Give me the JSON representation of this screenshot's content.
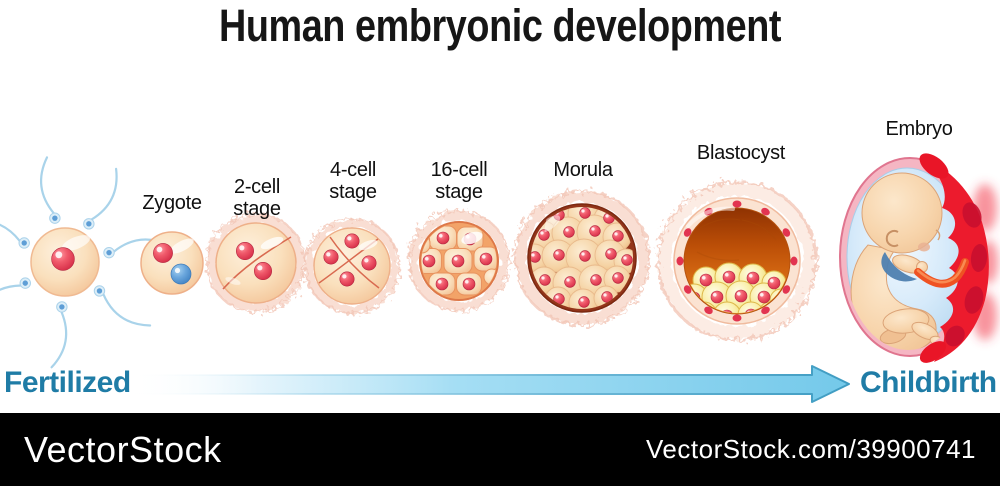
{
  "title": "Human embryonic development",
  "stage_labels": [
    {
      "id": "zygote",
      "label": "Zygote"
    },
    {
      "id": "2-cell-stage",
      "label": "2-cell stage"
    },
    {
      "id": "4-cell-stage",
      "label": "4-cell stage"
    },
    {
      "id": "16-cell-stage",
      "label": "16-cell stage"
    },
    {
      "id": "morula",
      "label": "Morula"
    },
    {
      "id": "blastocyst",
      "label": "Blastocyst"
    },
    {
      "id": "embryo",
      "label": "Embryo"
    }
  ],
  "timeline": {
    "start_label": "Fertilized",
    "end_label": "Childbirth"
  },
  "footer": {
    "brand": "VectorStock",
    "credit": "VectorStock.com/39900741"
  },
  "colors": {
    "title_text": "#161616",
    "timeline_text": "#1f7ca6",
    "arrow_fill": "#74c9ea",
    "arrow_stroke": "#3f9cc2",
    "cell_body_peach": "#f9dcba",
    "cell_outline": "#eeb089",
    "nucleus_red": "#e83e55",
    "nucleus_blue": "#5b9bd5",
    "sperm_blue": "#5e9ed6",
    "morula_rim": "#93351a",
    "blastocyst_cavity": "#bb4e07",
    "inner_cell_mass_yellow": "#faf0ae",
    "placenta_red": "#ec1b2d",
    "amnion_blue": "#d6eafa",
    "sac_pink": "#f5b6c3",
    "footer_bg": "#000000",
    "footer_text": "#ffffff"
  }
}
